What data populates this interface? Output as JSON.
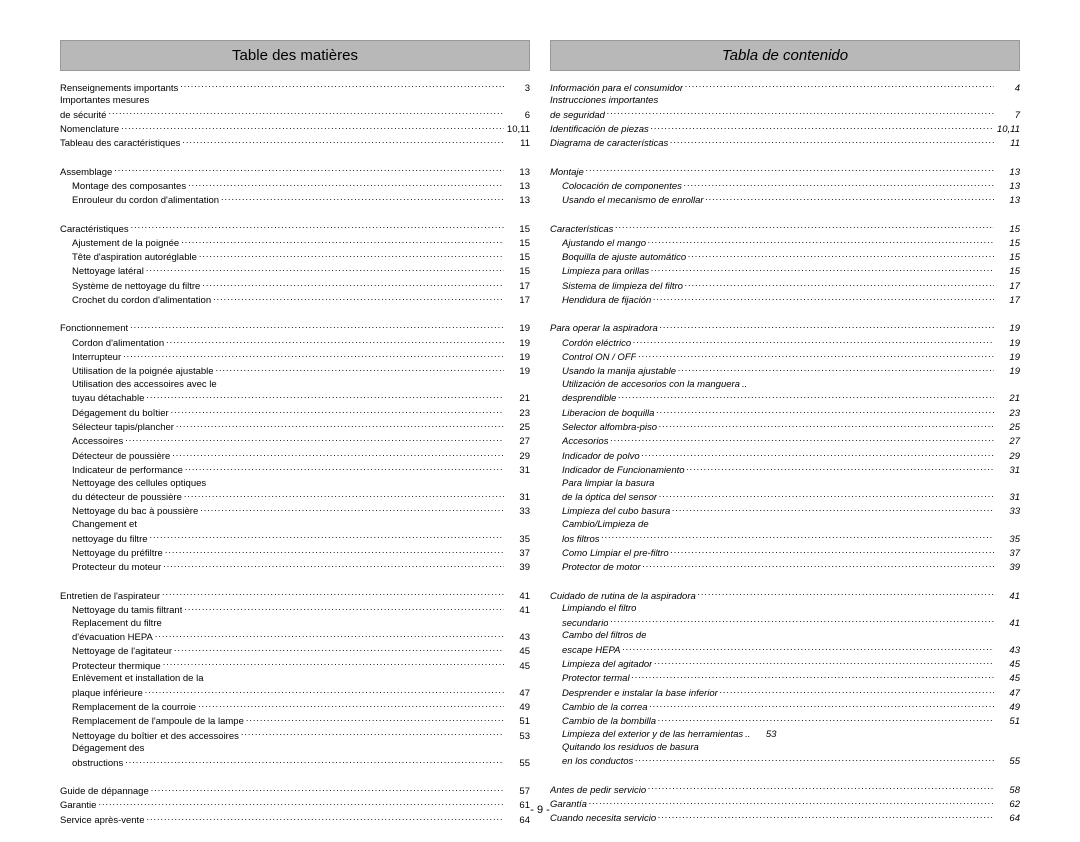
{
  "page_number": "- 9 -",
  "left": {
    "title": "Table des matières",
    "groups": [
      [
        {
          "label": "Renseignements importants",
          "page": "3",
          "indent": false
        },
        {
          "label": "Importantes mesures",
          "page": "",
          "indent": false,
          "nodots": true
        },
        {
          "label": "de sécurité",
          "page": "6",
          "indent": false
        },
        {
          "label": "Nomenclature",
          "page": "10,11",
          "indent": false
        },
        {
          "label": "Tableau des caractéristiques",
          "page": "11",
          "indent": false
        }
      ],
      [
        {
          "label": "Assemblage",
          "page": "13",
          "indent": false
        },
        {
          "label": "Montage des composantes",
          "page": "13",
          "indent": true
        },
        {
          "label": "Enrouleur du cordon d'alimentation",
          "page": "13",
          "indent": true
        }
      ],
      [
        {
          "label": "Caractéristiques",
          "page": "15",
          "indent": false
        },
        {
          "label": "Ajustement de la poignée",
          "page": "15",
          "indent": true
        },
        {
          "label": "Tête d'aspiration autoréglable",
          "page": "15",
          "indent": true
        },
        {
          "label": "Nettoyage latéral",
          "page": "15",
          "indent": true
        },
        {
          "label": "Système de nettoyage du filtre",
          "page": "17",
          "indent": true
        },
        {
          "label": "Crochet du cordon d'alimentation",
          "page": "17",
          "indent": true
        }
      ],
      [
        {
          "label": "Fonctionnement",
          "page": "19",
          "indent": false
        },
        {
          "label": "Cordon d'alimentation",
          "page": "19",
          "indent": true
        },
        {
          "label": "Interrupteur",
          "page": "19",
          "indent": true
        },
        {
          "label": "Utilisation de la poignée ajustable",
          "page": "19",
          "indent": true
        },
        {
          "label": "Utilisation des accessoires avec le",
          "page": "",
          "indent": true,
          "nodots": true
        },
        {
          "label": "tuyau détachable",
          "page": "21",
          "indent": true
        },
        {
          "label": "Dégagement du boîtier",
          "page": "23",
          "indent": true
        },
        {
          "label": "Sélecteur tapis/plancher",
          "page": "25",
          "indent": true
        },
        {
          "label": "Accessoires",
          "page": "27",
          "indent": true
        },
        {
          "label": "Détecteur de poussière",
          "page": "29",
          "indent": true
        },
        {
          "label": "Indicateur de performance",
          "page": "31",
          "indent": true
        },
        {
          "label": "Nettoyage des cellules optiques",
          "page": "",
          "indent": true,
          "nodots": true
        },
        {
          "label": "du détecteur de poussière",
          "page": "31",
          "indent": true
        },
        {
          "label": "Nettoyage du bac à poussière",
          "page": "33",
          "indent": true
        },
        {
          "label": "Changement et",
          "page": "",
          "indent": true,
          "nodots": true
        },
        {
          "label": "nettoyage du filtre",
          "page": "35",
          "indent": true
        },
        {
          "label": "Nettoyage du préfiltre",
          "page": "37",
          "indent": true
        },
        {
          "label": "Protecteur du moteur",
          "page": "39",
          "indent": true
        }
      ],
      [
        {
          "label": "Entretien de l'aspirateur",
          "page": "41",
          "indent": false
        },
        {
          "label": "Nettoyage du tamis filtrant",
          "page": "41",
          "indent": true
        },
        {
          "label": "Replacement du filtre",
          "page": "",
          "indent": true,
          "nodots": true
        },
        {
          "label": "d'évacuation HEPA",
          "page": "43",
          "indent": true
        },
        {
          "label": "Nettoyage de l'agitateur",
          "page": "45",
          "indent": true
        },
        {
          "label": "Protecteur thermique",
          "page": "45",
          "indent": true
        },
        {
          "label": "Enlèvement et installation de la",
          "page": "",
          "indent": true,
          "nodots": true
        },
        {
          "label": "plaque inférieure",
          "page": "47",
          "indent": true
        },
        {
          "label": "Remplacement de la courroie",
          "page": "49",
          "indent": true
        },
        {
          "label": "Remplacement de l'ampoule de la lampe",
          "page": "51",
          "indent": true
        },
        {
          "label": "Nettoyage du boîtier et des accessoires",
          "page": "53",
          "indent": true
        },
        {
          "label": "Dégagement des",
          "page": "",
          "indent": true,
          "nodots": true
        },
        {
          "label": "obstructions",
          "page": "55",
          "indent": true
        }
      ],
      [
        {
          "label": "Guide de dépannage",
          "page": "57",
          "indent": false
        },
        {
          "label": "Garantie",
          "page": "61",
          "indent": false
        },
        {
          "label": "Service après-vente",
          "page": "64",
          "indent": false
        }
      ]
    ]
  },
  "right": {
    "title": "Tabla de contenido",
    "groups": [
      [
        {
          "label": "Información para el consumidor",
          "page": "4",
          "indent": false
        },
        {
          "label": "Instrucciones importantes",
          "page": "",
          "indent": false,
          "nodots": true
        },
        {
          "label": "de seguridad",
          "page": "7",
          "indent": false
        },
        {
          "label": "Identificación de piezas",
          "page": "10,11",
          "indent": false
        },
        {
          "label": "Diagrama de características",
          "page": "11",
          "indent": false
        }
      ],
      [
        {
          "label": "Montaje",
          "page": "13",
          "indent": false
        },
        {
          "label": "Colocación de componentes",
          "page": "13",
          "indent": true
        },
        {
          "label": "Usando el mecanismo de enrollar",
          "page": "13",
          "indent": true
        }
      ],
      [
        {
          "label": "Características",
          "page": "15",
          "indent": false
        },
        {
          "label": "Ajustando el mango",
          "page": "15",
          "indent": true
        },
        {
          "label": "Boquilla de ajuste automático",
          "page": "15",
          "indent": true
        },
        {
          "label": "Limpieza para orillas",
          "page": "15",
          "indent": true
        },
        {
          "label": "Sistema de limpieza del filtro",
          "page": "17",
          "indent": true
        },
        {
          "label": "Hendidura de fijación",
          "page": "17",
          "indent": true
        }
      ],
      [
        {
          "label": "Para operar la aspiradora",
          "page": "19",
          "indent": false
        },
        {
          "label": "Cordón eléctrico",
          "page": "19",
          "indent": true
        },
        {
          "label": "Control ON / OFF",
          "page": "19",
          "indent": true
        },
        {
          "label": "Usando la manija ajustable",
          "page": "19",
          "indent": true
        },
        {
          "label": "Utilización de accesorios con la manguera",
          "page": "",
          "indent": true,
          "nodots": false,
          "shortdots": true
        },
        {
          "label": "desprendible",
          "page": "21",
          "indent": true
        },
        {
          "label": "Liberacion de boquilla",
          "page": "23",
          "indent": true
        },
        {
          "label": "Selector alfombra-piso",
          "page": "25",
          "indent": true
        },
        {
          "label": "Accesorios",
          "page": "27",
          "indent": true
        },
        {
          "label": "Indicador de polvo",
          "page": "29",
          "indent": true
        },
        {
          "label": "Indicador de Funcionamiento",
          "page": "31",
          "indent": true
        },
        {
          "label": "Para limpiar la basura",
          "page": "",
          "indent": true,
          "nodots": true
        },
        {
          "label": "de la óptica del sensor",
          "page": "31",
          "indent": true
        },
        {
          "label": "Limpieza del cubo basura",
          "page": "33",
          "indent": true
        },
        {
          "label": "Cambio/Limpieza de",
          "page": "",
          "indent": true,
          "nodots": true
        },
        {
          "label": "los filtros",
          "page": "35",
          "indent": true
        },
        {
          "label": "Como  Limpiar el pre-filtro",
          "page": "37",
          "indent": true
        },
        {
          "label": "Protector de motor",
          "page": "39",
          "indent": true
        }
      ],
      [
        {
          "label": "Cuidado de rutina de la aspiradora",
          "page": "41",
          "indent": false
        },
        {
          "label": "Limpiando el filtro",
          "page": "",
          "indent": true,
          "nodots": true
        },
        {
          "label": "secundario",
          "page": "41",
          "indent": true
        },
        {
          "label": "Cambo del filtros de",
          "page": "",
          "indent": true,
          "nodots": true
        },
        {
          "label": "escape HEPA",
          "page": "43",
          "indent": true
        },
        {
          "label": "Limpieza del agitador",
          "page": "45",
          "indent": true
        },
        {
          "label": "Protector termal",
          "page": "45",
          "indent": true
        },
        {
          "label": "Desprender e instalar la base inferior",
          "page": "47",
          "indent": true
        },
        {
          "label": "Cambio de la correa",
          "page": "49",
          "indent": true
        },
        {
          "label": "Cambio de la bombilla",
          "page": "51",
          "indent": true
        },
        {
          "label": "Limpieza del exterior y de las herramientas",
          "page": "53",
          "indent": true,
          "shortdots": true
        },
        {
          "label": "Quitando los residuos de basura",
          "page": "",
          "indent": true,
          "nodots": true
        },
        {
          "label": "en los conductos",
          "page": "55",
          "indent": true
        }
      ],
      [
        {
          "label": "Antes de pedir servicio",
          "page": "58",
          "indent": false
        },
        {
          "label": "Garantía",
          "page": "62",
          "indent": false
        },
        {
          "label": "Cuando necesita  servicio",
          "page": "64",
          "indent": false
        }
      ]
    ]
  }
}
